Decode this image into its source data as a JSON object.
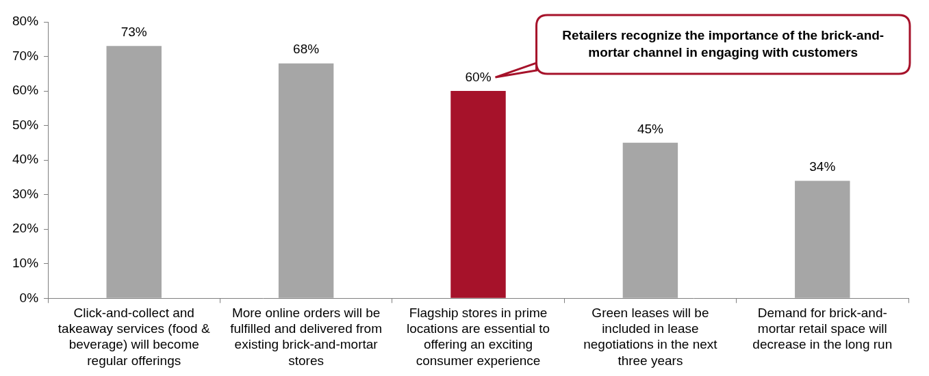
{
  "chart_data": {
    "type": "bar",
    "categories": [
      "Click-and-collect and takeaway services (food & beverage) will become regular offerings",
      "More online orders will be fulfilled and delivered from existing brick-and-mortar stores",
      "Flagship stores in prime locations are essential to offering an exciting consumer experience",
      "Green leases will be included in lease negotiations in the next three years",
      "Demand for brick-and-mortar retail space will decrease in the long run"
    ],
    "values": [
      73,
      68,
      60,
      45,
      34
    ],
    "value_labels": [
      "73%",
      "68%",
      "60%",
      "45%",
      "34%"
    ],
    "colors": [
      "#a6a6a6",
      "#a6a6a6",
      "#a6122a",
      "#a6a6a6",
      "#a6a6a6"
    ],
    "ylim": [
      0,
      80
    ],
    "yticks": [
      {
        "value": 0,
        "label": "0%"
      },
      {
        "value": 10,
        "label": "10%"
      },
      {
        "value": 20,
        "label": "20%"
      },
      {
        "value": 30,
        "label": "30%"
      },
      {
        "value": 40,
        "label": "40%"
      },
      {
        "value": 50,
        "label": "50%"
      },
      {
        "value": 60,
        "label": "60%"
      },
      {
        "value": 70,
        "label": "70%"
      },
      {
        "value": 80,
        "label": "80%"
      }
    ],
    "grid": false,
    "data_labels": true,
    "annotations": [
      {
        "text": "Retailers recognize the importance of the brick-and-mortar channel in engaging with customers",
        "category": "Flagship stores in prime locations are essential to offering an exciting consumer experience"
      }
    ]
  }
}
